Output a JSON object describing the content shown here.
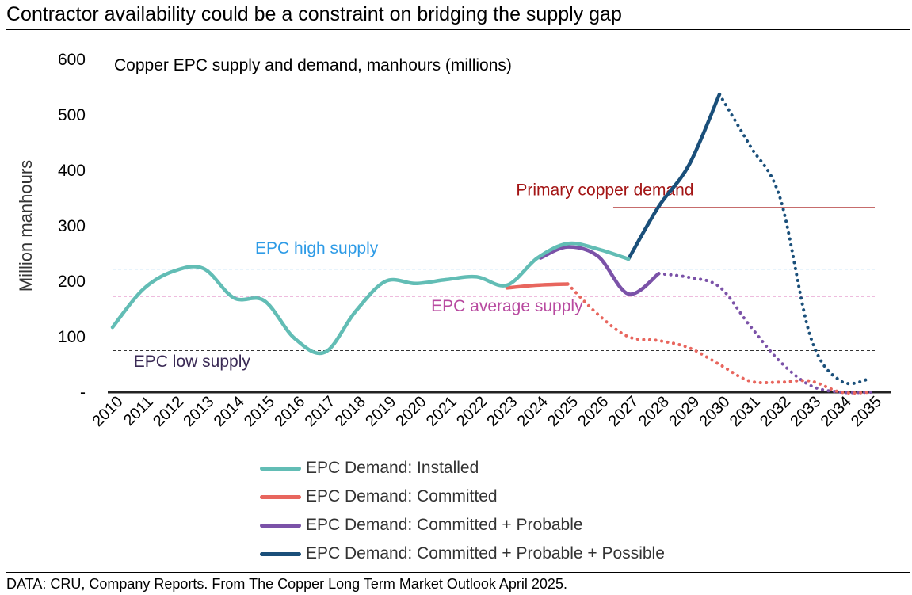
{
  "title": "Contractor availability could be a constraint on bridging the supply gap",
  "source": "DATA: CRU, Company Reports. From The Copper Long Term Market Outlook April 2025.",
  "chart_data": {
    "type": "line",
    "subtitle": "Copper EPC supply and demand, manhours (millions)",
    "ylabel": "Million manhours",
    "xlabel": "",
    "ylim": [
      0,
      600
    ],
    "yticks": [
      {
        "value": 0,
        "label": "-"
      },
      {
        "value": 100,
        "label": "100"
      },
      {
        "value": 200,
        "label": "200"
      },
      {
        "value": 300,
        "label": "300"
      },
      {
        "value": 400,
        "label": "400"
      },
      {
        "value": 500,
        "label": "500"
      },
      {
        "value": 600,
        "label": "600"
      }
    ],
    "categories": [
      "2010",
      "2011",
      "2012",
      "2013",
      "2014",
      "2015",
      "2016",
      "2017",
      "2018",
      "2019",
      "2020",
      "2021",
      "2022",
      "2023",
      "2024",
      "2025",
      "2026",
      "2027",
      "2028",
      "2029",
      "2030",
      "2031",
      "2032",
      "2033",
      "2034",
      "2035"
    ],
    "series": [
      {
        "name": "EPC Demand: Committed + Probable + Possible",
        "color": "#1a4f7a",
        "solid": [
          [
            17,
            240
          ],
          [
            18,
            335
          ],
          [
            19,
            410
          ],
          [
            20,
            537
          ]
        ],
        "dotted": [
          [
            20,
            537
          ],
          [
            21,
            445
          ],
          [
            22,
            350
          ],
          [
            23,
            100
          ],
          [
            24,
            20
          ],
          [
            25,
            25
          ]
        ]
      },
      {
        "name": "EPC Demand: Committed + Probable",
        "color": "#7b52a8",
        "solid": [
          [
            14.1,
            242
          ],
          [
            15,
            262
          ],
          [
            16,
            245
          ],
          [
            17,
            177
          ],
          [
            18,
            214
          ]
        ],
        "dotted": [
          [
            18,
            214
          ],
          [
            19,
            207
          ],
          [
            20,
            190
          ],
          [
            21,
            120
          ],
          [
            22,
            55
          ],
          [
            23,
            12
          ],
          [
            24,
            0
          ],
          [
            25,
            0
          ]
        ]
      },
      {
        "name": "EPC Demand: Committed",
        "color": "#e8665e",
        "solid": [
          [
            13,
            188
          ],
          [
            14,
            193
          ],
          [
            15,
            195
          ]
        ],
        "dotted": [
          [
            15,
            195
          ],
          [
            16,
            140
          ],
          [
            17,
            100
          ],
          [
            18,
            93
          ],
          [
            19,
            80
          ],
          [
            20,
            50
          ],
          [
            21,
            20
          ],
          [
            22,
            18
          ],
          [
            23,
            20
          ],
          [
            24,
            0
          ],
          [
            25,
            0
          ]
        ]
      },
      {
        "name": "EPC Demand: Installed",
        "color": "#62bdb5",
        "solid": [
          [
            0,
            117
          ],
          [
            1,
            185
          ],
          [
            2,
            218
          ],
          [
            3,
            223
          ],
          [
            4,
            170
          ],
          [
            5,
            165
          ],
          [
            6,
            97
          ],
          [
            7,
            72
          ],
          [
            8,
            145
          ],
          [
            9,
            200
          ],
          [
            10,
            196
          ],
          [
            11,
            203
          ],
          [
            12,
            208
          ],
          [
            13,
            193
          ],
          [
            14,
            242
          ],
          [
            15,
            268
          ],
          [
            16,
            258
          ],
          [
            17,
            240
          ]
        ],
        "dotted": []
      }
    ],
    "reference_lines": [
      {
        "name": "Primary copper demand",
        "value": 333,
        "color": "#a31515",
        "from": 16.5,
        "label_x": 13.3,
        "label_y": 355
      },
      {
        "name": "EPC high supply",
        "value": 222,
        "color": "#4aa6e2",
        "from": 0,
        "label_x": 4.7,
        "label_y": 250
      },
      {
        "name": "EPC average supply",
        "value": 173,
        "color": "#d24ea8",
        "from": 0,
        "label_x": 10.5,
        "label_y": 146
      },
      {
        "name": "EPC low supply",
        "value": 75,
        "color": "#333333",
        "from": 0,
        "label_x": 0.7,
        "label_y": 46
      }
    ],
    "label_colors": {
      "Primary copper demand": "#a31515",
      "EPC high supply": "#2e9be6",
      "EPC average supply": "#b84aa0",
      "EPC low supply": "#3a2a55"
    },
    "legend": [
      {
        "label": "EPC Demand: Installed",
        "color": "#62bdb5"
      },
      {
        "label": "EPC Demand: Committed",
        "color": "#e8665e"
      },
      {
        "label": "EPC Demand: Committed + Probable",
        "color": "#7b52a8"
      },
      {
        "label": "EPC Demand: Committed + Probable + Possible",
        "color": "#1a4f7a"
      }
    ],
    "grid": false,
    "legend_position": "bottom-center"
  }
}
